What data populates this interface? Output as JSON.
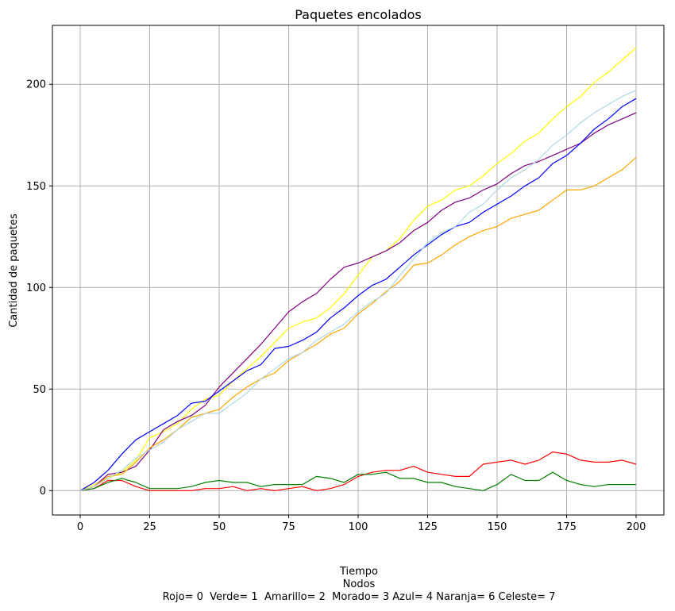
{
  "chart_data": {
    "type": "line",
    "title": "Paquetes encolados",
    "xlabel": "Tiempo",
    "xlabel_line2": "Nodos",
    "xlabel_line3": "Rojo= 0  Verde= 1  Amarillo= 2  Morado= 3 Azul= 4 Naranja= 6 Celeste= 7",
    "ylabel": "Cantidad de paquetes",
    "xlim": [
      -10,
      210
    ],
    "ylim": [
      -12,
      229
    ],
    "xticks": [
      0,
      25,
      50,
      75,
      100,
      125,
      150,
      175,
      200
    ],
    "yticks": [
      0,
      50,
      100,
      150,
      200
    ],
    "grid": true,
    "series": [
      {
        "color": "#ff0000",
        "x": [
          0,
          5,
          10,
          15,
          20,
          25,
          30,
          35,
          40,
          45,
          50,
          55,
          60,
          65,
          70,
          75,
          80,
          85,
          90,
          95,
          100,
          105,
          110,
          115,
          120,
          125,
          130,
          135,
          140,
          145,
          150,
          155,
          160,
          165,
          170,
          175,
          180,
          185,
          190,
          195,
          200
        ],
        "y": [
          0,
          1,
          5,
          5,
          2,
          0,
          0,
          0,
          0,
          1,
          1,
          2,
          0,
          1,
          0,
          1,
          2,
          0,
          1,
          3,
          7,
          9,
          10,
          10,
          12,
          9,
          8,
          7,
          7,
          13,
          14,
          15,
          13,
          15,
          19,
          18,
          15,
          14,
          14,
          15,
          13
        ]
      },
      {
        "color": "#008000",
        "x": [
          0,
          5,
          10,
          15,
          20,
          25,
          30,
          35,
          40,
          45,
          50,
          55,
          60,
          65,
          70,
          75,
          80,
          85,
          90,
          95,
          100,
          105,
          110,
          115,
          120,
          125,
          130,
          135,
          140,
          145,
          150,
          155,
          160,
          165,
          170,
          175,
          180,
          185,
          190,
          195,
          200
        ],
        "y": [
          0,
          1,
          4,
          6,
          4,
          1,
          1,
          1,
          2,
          4,
          5,
          4,
          4,
          2,
          3,
          3,
          3,
          7,
          6,
          4,
          8,
          8,
          9,
          6,
          6,
          4,
          4,
          2,
          1,
          0,
          3,
          8,
          5,
          5,
          9,
          5,
          3,
          2,
          3,
          3,
          3
        ]
      },
      {
        "color": "#ffff00",
        "x": [
          0,
          5,
          10,
          15,
          20,
          25,
          30,
          35,
          40,
          45,
          50,
          55,
          60,
          65,
          70,
          75,
          80,
          85,
          90,
          95,
          100,
          105,
          110,
          115,
          120,
          125,
          130,
          135,
          140,
          145,
          150,
          155,
          160,
          165,
          170,
          175,
          180,
          185,
          190,
          195,
          200
        ],
        "y": [
          0,
          3,
          6,
          9,
          15,
          26,
          29,
          33,
          40,
          45,
          47,
          54,
          60,
          66,
          73,
          80,
          83,
          85,
          90,
          97,
          106,
          115,
          118,
          124,
          133,
          140,
          143,
          148,
          150,
          155,
          161,
          166,
          172,
          176,
          183,
          189,
          194,
          201,
          206,
          212,
          218
        ]
      },
      {
        "color": "#800080",
        "x": [
          0,
          5,
          10,
          15,
          20,
          25,
          30,
          35,
          40,
          45,
          50,
          55,
          60,
          65,
          70,
          75,
          80,
          85,
          90,
          95,
          100,
          105,
          110,
          115,
          120,
          125,
          130,
          135,
          140,
          145,
          150,
          155,
          160,
          165,
          170,
          175,
          180,
          185,
          190,
          195,
          200
        ],
        "y": [
          0,
          2,
          8,
          9,
          12,
          20,
          30,
          34,
          37,
          42,
          51,
          58,
          65,
          72,
          80,
          88,
          93,
          97,
          104,
          110,
          112,
          115,
          118,
          122,
          128,
          132,
          138,
          142,
          144,
          148,
          151,
          156,
          160,
          162,
          165,
          168,
          171,
          176,
          180,
          183,
          186
        ]
      },
      {
        "color": "#0000ff",
        "x": [
          0,
          5,
          10,
          15,
          20,
          25,
          30,
          35,
          40,
          45,
          50,
          55,
          60,
          65,
          70,
          75,
          80,
          85,
          90,
          95,
          100,
          105,
          110,
          115,
          120,
          125,
          130,
          135,
          140,
          145,
          150,
          155,
          160,
          165,
          170,
          175,
          180,
          185,
          190,
          195,
          200
        ],
        "y": [
          0,
          4,
          10,
          18,
          25,
          29,
          33,
          37,
          43,
          44,
          49,
          54,
          59,
          62,
          70,
          71,
          74,
          78,
          85,
          90,
          96,
          101,
          104,
          110,
          116,
          121,
          126,
          130,
          132,
          137,
          141,
          145,
          150,
          154,
          161,
          165,
          171,
          178,
          183,
          189,
          193
        ]
      },
      {
        "color": "#ffa500",
        "x": [
          0,
          5,
          10,
          15,
          20,
          25,
          30,
          35,
          40,
          45,
          50,
          55,
          60,
          65,
          70,
          75,
          80,
          85,
          90,
          95,
          100,
          105,
          110,
          115,
          120,
          125,
          130,
          135,
          140,
          145,
          150,
          155,
          160,
          165,
          170,
          175,
          180,
          185,
          190,
          195,
          200
        ],
        "y": [
          0,
          2,
          7,
          8,
          14,
          21,
          25,
          30,
          36,
          38,
          40,
          46,
          51,
          55,
          58,
          64,
          68,
          72,
          77,
          80,
          87,
          92,
          98,
          103,
          111,
          112,
          116,
          121,
          125,
          128,
          130,
          134,
          136,
          138,
          143,
          148,
          148,
          150,
          154,
          158,
          164
        ]
      },
      {
        "color": "#add8e6",
        "x": [
          0,
          5,
          10,
          15,
          20,
          25,
          30,
          35,
          40,
          45,
          50,
          55,
          60,
          65,
          70,
          75,
          80,
          85,
          90,
          95,
          100,
          105,
          110,
          115,
          120,
          125,
          130,
          135,
          140,
          145,
          150,
          155,
          160,
          165,
          170,
          175,
          180,
          185,
          190,
          195,
          200
        ],
        "y": [
          0,
          2,
          6,
          10,
          16,
          20,
          24,
          30,
          34,
          38,
          38,
          43,
          48,
          55,
          60,
          65,
          68,
          74,
          78,
          82,
          88,
          93,
          97,
          106,
          114,
          122,
          127,
          130,
          137,
          141,
          148,
          154,
          158,
          163,
          170,
          175,
          181,
          186,
          190,
          194,
          197
        ]
      }
    ]
  }
}
